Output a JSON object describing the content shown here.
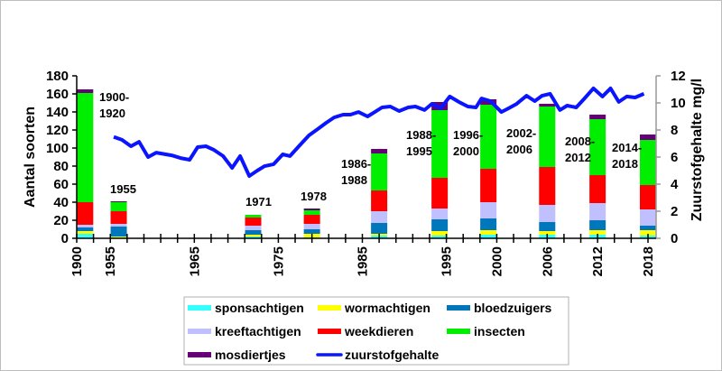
{
  "chart_data": {
    "type": "bar+line",
    "title": "",
    "ylabel": "Aantal soorten",
    "y2label": "Zuurstofgehalte mg/l",
    "ylim": [
      0,
      180
    ],
    "y2lim": [
      0,
      12
    ],
    "yticks": [
      "0",
      "20",
      "40",
      "60",
      "80",
      "100",
      "120",
      "140",
      "160",
      "180"
    ],
    "y2ticks": [
      "0",
      "2",
      "4",
      "6",
      "8",
      "10",
      "12"
    ],
    "x_category_count": 34,
    "xtick_labels": [
      {
        "pos": 0,
        "label": "1900"
      },
      {
        "pos": 2,
        "label": "1955"
      },
      {
        "pos": 7,
        "label": "1965"
      },
      {
        "pos": 12,
        "label": "1975"
      },
      {
        "pos": 17,
        "label": "1985"
      },
      {
        "pos": 22,
        "label": "1995"
      },
      {
        "pos": 25,
        "label": "2000"
      },
      {
        "pos": 28,
        "label": "2006"
      },
      {
        "pos": 31,
        "label": "2012"
      },
      {
        "pos": 34,
        "label": "2018"
      }
    ],
    "series_names": [
      "sponsachtigen",
      "wormachtigen",
      "bloedzuigers",
      "kreeftachtigen",
      "weekdieren",
      "insecten",
      "mosdiertjes"
    ],
    "series_colors": [
      "#33ffff",
      "#ffff00",
      "#0077bb",
      "#c0c0ff",
      "#ff0000",
      "#00ee00",
      "#660077"
    ],
    "bars": [
      {
        "pos": 0.5,
        "label": "1900-\n1920",
        "label_line1": "1900-",
        "label_line2": "1920",
        "values": [
          5,
          3,
          4,
          3,
          25,
          121,
          4
        ]
      },
      {
        "pos": 2.5,
        "label_line1": "1955",
        "label_line2": "",
        "values": [
          1,
          1,
          11,
          3,
          14,
          10,
          1
        ]
      },
      {
        "pos": 10.5,
        "label_line1": "1971",
        "label_line2": "",
        "values": [
          2,
          2,
          5,
          5,
          9,
          3,
          0
        ]
      },
      {
        "pos": 14,
        "label_line1": "1978",
        "label_line2": "",
        "values": [
          1,
          4,
          5,
          6,
          10,
          5,
          2
        ]
      },
      {
        "pos": 18,
        "label_line1": "1986-",
        "label_line2": "1988",
        "values": [
          3,
          2,
          12,
          13,
          23,
          41,
          5
        ]
      },
      {
        "pos": 21.6,
        "label_line1": "1988-",
        "label_line2": "1995",
        "values": [
          3,
          5,
          13,
          12,
          34,
          75,
          9
        ]
      },
      {
        "pos": 24.5,
        "label_line1": "1996-",
        "label_line2": "2000",
        "values": [
          4,
          5,
          13,
          18,
          37,
          71,
          6
        ]
      },
      {
        "pos": 28,
        "label_line1": "2002-",
        "label_line2": "2006",
        "values": [
          4,
          4,
          10,
          19,
          42,
          67,
          3
        ]
      },
      {
        "pos": 31,
        "label_line1": "2008-",
        "label_line2": "2012",
        "values": [
          4,
          5,
          11,
          19,
          31,
          62,
          5
        ]
      },
      {
        "pos": 34,
        "label_line1": "2014-",
        "label_line2": "2018",
        "values": [
          3,
          6,
          5,
          18,
          27,
          50,
          6
        ]
      }
    ],
    "line": {
      "name": "zuurstofgehalte",
      "color": "#0a14ff",
      "points": [
        [
          2.2,
          7.49
        ],
        [
          2.69,
          7.27
        ],
        [
          3.23,
          6.8
        ],
        [
          3.71,
          7.13
        ],
        [
          4.25,
          6.0
        ],
        [
          4.73,
          6.33
        ],
        [
          5.65,
          6.13
        ],
        [
          6.18,
          5.93
        ],
        [
          6.72,
          5.8
        ],
        [
          7.2,
          6.73
        ],
        [
          7.69,
          6.8
        ],
        [
          8.17,
          6.53
        ],
        [
          8.71,
          6.07
        ],
        [
          9.25,
          5.2
        ],
        [
          9.73,
          6.07
        ],
        [
          10.27,
          4.6
        ],
        [
          10.75,
          5.0
        ],
        [
          11.18,
          5.33
        ],
        [
          11.72,
          5.47
        ],
        [
          12.26,
          6.2
        ],
        [
          12.69,
          6.07
        ],
        [
          13.28,
          6.87
        ],
        [
          13.82,
          7.6
        ],
        [
          14.35,
          8.07
        ],
        [
          14.84,
          8.53
        ],
        [
          15.32,
          8.93
        ],
        [
          15.86,
          9.13
        ],
        [
          16.29,
          9.13
        ],
        [
          16.77,
          9.33
        ],
        [
          17.31,
          9.0
        ],
        [
          17.74,
          9.33
        ],
        [
          18.17,
          9.67
        ],
        [
          18.66,
          9.73
        ],
        [
          19.19,
          9.4
        ],
        [
          19.73,
          9.67
        ],
        [
          20.16,
          9.73
        ],
        [
          20.7,
          9.47
        ],
        [
          21.13,
          9.93
        ],
        [
          21.67,
          9.6
        ],
        [
          22.2,
          10.47
        ],
        [
          22.74,
          10.07
        ],
        [
          23.28,
          9.73
        ],
        [
          23.76,
          9.67
        ],
        [
          24.09,
          10.33
        ],
        [
          24.62,
          10.13
        ],
        [
          25.27,
          9.33
        ],
        [
          25.7,
          9.6
        ],
        [
          26.18,
          9.93
        ],
        [
          26.77,
          10.53
        ],
        [
          27.26,
          10.13
        ],
        [
          27.69,
          10.53
        ],
        [
          28.17,
          10.67
        ],
        [
          28.76,
          9.47
        ],
        [
          29.19,
          9.8
        ],
        [
          29.73,
          9.67
        ],
        [
          30.22,
          10.33
        ],
        [
          30.75,
          11.07
        ],
        [
          31.29,
          10.47
        ],
        [
          31.77,
          11.07
        ],
        [
          32.26,
          10.07
        ],
        [
          32.74,
          10.47
        ],
        [
          33.23,
          10.4
        ],
        [
          33.76,
          10.67
        ]
      ]
    },
    "legend": {
      "placement": "bottom",
      "entries": [
        "sponsachtigen",
        "wormachtigen",
        "bloedzuigers",
        "kreeftachtigen",
        "weekdieren",
        "insecten",
        "mosdiertjes",
        "zuurstofgehalte"
      ]
    }
  }
}
